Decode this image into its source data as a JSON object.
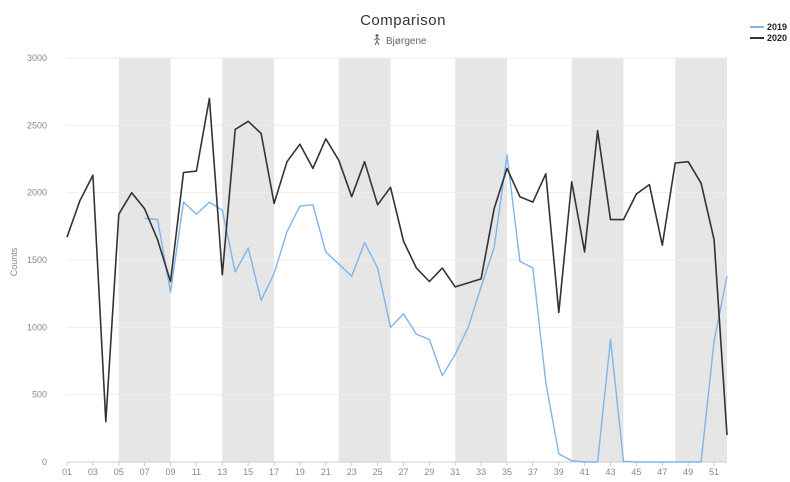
{
  "chart_data": {
    "type": "line",
    "title": "Comparison",
    "subtitle": "Bjørgene",
    "subtitle_icon": "pedestrian-icon",
    "xlabel": "",
    "ylabel": "Counts",
    "ylim": [
      0,
      3000
    ],
    "yticks": [
      0,
      500,
      1000,
      1500,
      2000,
      2500,
      3000
    ],
    "xlim": [
      1,
      52
    ],
    "xtick_labels": [
      "01",
      "03",
      "05",
      "07",
      "09",
      "11",
      "13",
      "15",
      "17",
      "19",
      "21",
      "23",
      "25",
      "27",
      "29",
      "31",
      "33",
      "35",
      "37",
      "39",
      "41",
      "43",
      "45",
      "47",
      "49",
      "51"
    ],
    "shaded_weeks": [
      [
        5,
        9
      ],
      [
        13,
        17
      ],
      [
        22,
        26
      ],
      [
        31,
        35
      ],
      [
        40,
        44
      ],
      [
        48,
        52
      ]
    ],
    "shade_color": "#e6e6e6",
    "grid": true,
    "legend_position": "top-right",
    "series": [
      {
        "name": "2019",
        "color": "#7fb5ea",
        "points": [
          [
            7,
            1810
          ],
          [
            8,
            1800
          ],
          [
            9,
            1260
          ],
          [
            10,
            1930
          ],
          [
            11,
            1840
          ],
          [
            12,
            1930
          ],
          [
            13,
            1870
          ],
          [
            14,
            1410
          ],
          [
            15,
            1590
          ],
          [
            16,
            1200
          ],
          [
            17,
            1400
          ],
          [
            18,
            1710
          ],
          [
            19,
            1900
          ],
          [
            20,
            1910
          ],
          [
            21,
            1560
          ],
          [
            22,
            1470
          ],
          [
            23,
            1380
          ],
          [
            24,
            1630
          ],
          [
            25,
            1440
          ],
          [
            26,
            1000
          ],
          [
            27,
            1100
          ],
          [
            28,
            950
          ],
          [
            29,
            910
          ],
          [
            30,
            640
          ],
          [
            31,
            800
          ],
          [
            32,
            1000
          ],
          [
            33,
            1300
          ],
          [
            34,
            1590
          ],
          [
            35,
            2280
          ],
          [
            36,
            1490
          ],
          [
            37,
            1440
          ],
          [
            38,
            590
          ],
          [
            39,
            60
          ],
          [
            40,
            10
          ],
          [
            41,
            0
          ],
          [
            42,
            0
          ],
          [
            43,
            910
          ],
          [
            44,
            5
          ],
          [
            45,
            0
          ],
          [
            46,
            0
          ],
          [
            47,
            0
          ],
          [
            48,
            0
          ],
          [
            49,
            0
          ],
          [
            50,
            0
          ],
          [
            51,
            900
          ],
          [
            52,
            1380
          ]
        ]
      },
      {
        "name": "2020",
        "color": "#333333",
        "points": [
          [
            1,
            1670
          ],
          [
            2,
            1940
          ],
          [
            3,
            2130
          ],
          [
            4,
            300
          ],
          [
            5,
            1840
          ],
          [
            6,
            2000
          ],
          [
            7,
            1880
          ],
          [
            8,
            1650
          ],
          [
            9,
            1340
          ],
          [
            10,
            2150
          ],
          [
            11,
            2160
          ],
          [
            12,
            2700
          ],
          [
            13,
            1390
          ],
          [
            14,
            2470
          ],
          [
            15,
            2530
          ],
          [
            16,
            2440
          ],
          [
            17,
            1920
          ],
          [
            18,
            2230
          ],
          [
            19,
            2360
          ],
          [
            20,
            2180
          ],
          [
            21,
            2400
          ],
          [
            22,
            2240
          ],
          [
            23,
            1970
          ],
          [
            24,
            2230
          ],
          [
            25,
            1910
          ],
          [
            26,
            2040
          ],
          [
            27,
            1640
          ],
          [
            28,
            1440
          ],
          [
            29,
            1340
          ],
          [
            30,
            1440
          ],
          [
            31,
            1300
          ],
          [
            32,
            1330
          ],
          [
            33,
            1360
          ],
          [
            34,
            1880
          ],
          [
            35,
            2180
          ],
          [
            36,
            1970
          ],
          [
            37,
            1930
          ],
          [
            38,
            2140
          ],
          [
            39,
            1110
          ],
          [
            40,
            2080
          ],
          [
            41,
            1560
          ],
          [
            42,
            2460
          ],
          [
            43,
            1800
          ],
          [
            44,
            1800
          ],
          [
            45,
            1990
          ],
          [
            46,
            2060
          ],
          [
            47,
            1610
          ],
          [
            48,
            2220
          ],
          [
            49,
            2230
          ],
          [
            50,
            2070
          ],
          [
            51,
            1650
          ],
          [
            52,
            200
          ]
        ]
      }
    ]
  }
}
